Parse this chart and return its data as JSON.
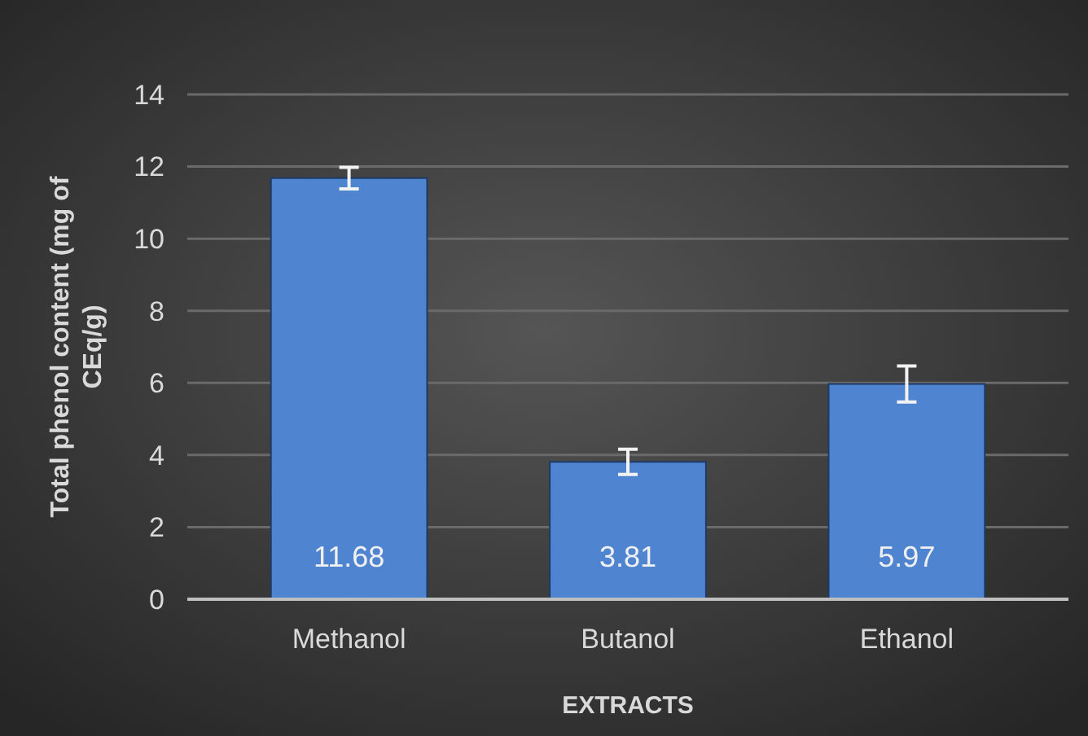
{
  "chart_data": {
    "type": "bar",
    "xlabel": "EXTRACTS",
    "ylabel": "Total phenol content  (mg of CEq/g)",
    "categories": [
      "Methanol",
      "Butanol",
      "Ethanol"
    ],
    "values": [
      11.68,
      3.81,
      5.97
    ],
    "errors": [
      0.3,
      0.35,
      0.5
    ],
    "color": "#4f85d0",
    "ylim": [
      0,
      14
    ],
    "yticks": [
      0,
      2,
      4,
      6,
      8,
      10,
      12,
      14
    ],
    "grid": "y",
    "data_labels": true
  }
}
